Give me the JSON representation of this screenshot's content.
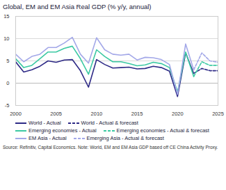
{
  "chart_data": {
    "type": "line",
    "title": "Global, EM and EM Asia Real GDP (% y/y, annual)",
    "source": "Source: Refinitiv, Capital Economics. Note: World, EM and EM Asia GDP based off CE China Activity Proxy.",
    "x": [
      2000,
      2001,
      2002,
      2003,
      2004,
      2005,
      2006,
      2007,
      2008,
      2009,
      2010,
      2011,
      2012,
      2013,
      2014,
      2015,
      2016,
      2017,
      2018,
      2019,
      2020,
      2021,
      2022,
      2023,
      2024,
      2025
    ],
    "xlim": [
      2000,
      2025
    ],
    "xticks": [
      2000,
      2005,
      2010,
      2015,
      2020,
      2025
    ],
    "ylim": [
      -5,
      15
    ],
    "yticks": [
      -5,
      0,
      5,
      10,
      15
    ],
    "grid": true,
    "legend": "bottom",
    "series": [
      {
        "name": "World - Actual",
        "color": "#2e2a86",
        "line_style": "solid",
        "values": [
          4.8,
          2.5,
          3.0,
          3.8,
          5.0,
          4.7,
          5.2,
          5.3,
          2.8,
          -0.9,
          5.3,
          4.2,
          3.4,
          3.5,
          3.6,
          3.2,
          3.3,
          3.8,
          3.5,
          2.7,
          -3.0,
          6.8,
          2.2,
          null,
          null,
          null
        ]
      },
      {
        "name": "World - Actual & forecast",
        "color": "#2e2a86",
        "line_style": "dashed",
        "values": [
          null,
          null,
          null,
          null,
          null,
          null,
          null,
          null,
          null,
          null,
          null,
          null,
          null,
          null,
          null,
          null,
          null,
          null,
          null,
          null,
          null,
          null,
          2.2,
          3.3,
          2.8,
          2.8
        ]
      },
      {
        "name": "Emerging economies - Actual",
        "color": "#3cc9a3",
        "line_style": "solid",
        "values": [
          5.5,
          3.5,
          4.0,
          5.5,
          7.0,
          7.0,
          7.8,
          8.3,
          5.5,
          2.0,
          7.5,
          6.0,
          4.8,
          4.8,
          4.4,
          3.9,
          4.1,
          4.7,
          4.4,
          3.5,
          -2.0,
          7.0,
          1.5,
          null,
          null,
          null
        ]
      },
      {
        "name": "Emerging economies - Actual & forecast",
        "color": "#3cc9a3",
        "line_style": "dashed",
        "values": [
          null,
          null,
          null,
          null,
          null,
          null,
          null,
          null,
          null,
          null,
          null,
          null,
          null,
          null,
          null,
          null,
          null,
          null,
          null,
          null,
          null,
          null,
          1.5,
          4.8,
          4.0,
          4.0
        ]
      },
      {
        "name": "EM Asia - Actual",
        "color": "#a3a8e8",
        "line_style": "solid",
        "values": [
          6.5,
          4.8,
          6.0,
          6.5,
          8.0,
          8.0,
          9.0,
          10.3,
          6.5,
          4.5,
          10.2,
          7.5,
          6.5,
          6.3,
          6.5,
          5.2,
          5.8,
          5.7,
          5.3,
          4.2,
          -2.5,
          8.8,
          3.0,
          null,
          null,
          null
        ]
      },
      {
        "name": "Emerging Asia - Actual & forecast",
        "color": "#a3a8e8",
        "line_style": "dashed",
        "values": [
          null,
          null,
          null,
          null,
          null,
          null,
          null,
          null,
          null,
          null,
          null,
          null,
          null,
          null,
          null,
          null,
          null,
          null,
          null,
          null,
          null,
          null,
          3.0,
          6.8,
          5.0,
          4.7
        ]
      }
    ]
  }
}
